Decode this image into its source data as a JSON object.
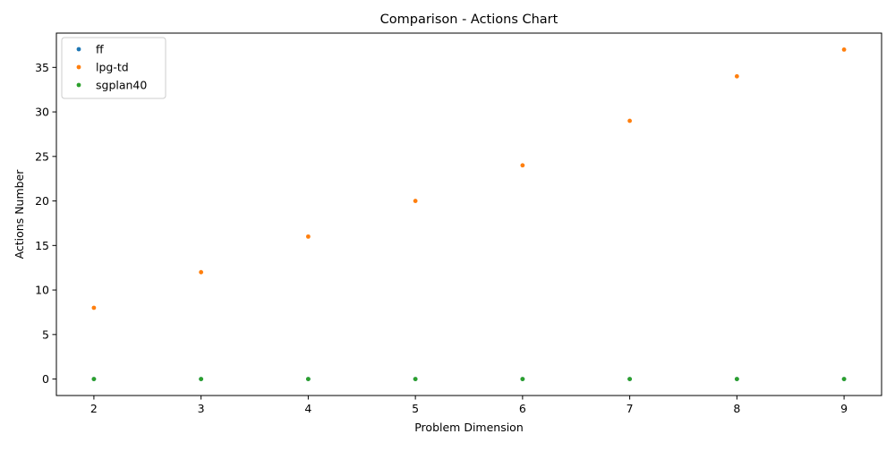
{
  "chart_data": {
    "type": "scatter",
    "title": "Comparison - Actions Chart",
    "xlabel": "Problem Dimension",
    "ylabel": "Actions Number",
    "xlim": [
      1.65,
      9.35
    ],
    "ylim": [
      -1.85,
      38.85
    ],
    "x_ticks": [
      2,
      3,
      4,
      5,
      6,
      7,
      8,
      9
    ],
    "y_ticks": [
      0,
      5,
      10,
      15,
      20,
      25,
      30,
      35
    ],
    "grid": false,
    "legend_position": "top-left",
    "series": [
      {
        "name": "ff",
        "color": "#1f77b4",
        "x": [
          2,
          3,
          4,
          5,
          6,
          7,
          8,
          9
        ],
        "y": [
          0,
          0,
          0,
          0,
          0,
          0,
          0,
          0
        ]
      },
      {
        "name": "lpg-td",
        "color": "#ff7f0e",
        "x": [
          2,
          3,
          4,
          5,
          6,
          7,
          8,
          9
        ],
        "y": [
          8,
          12,
          16,
          20,
          24,
          29,
          34,
          37
        ]
      },
      {
        "name": "sgplan40",
        "color": "#2ca02c",
        "x": [
          2,
          3,
          4,
          5,
          6,
          7,
          8,
          9
        ],
        "y": [
          0,
          0,
          0,
          0,
          0,
          0,
          0,
          0
        ]
      }
    ]
  }
}
